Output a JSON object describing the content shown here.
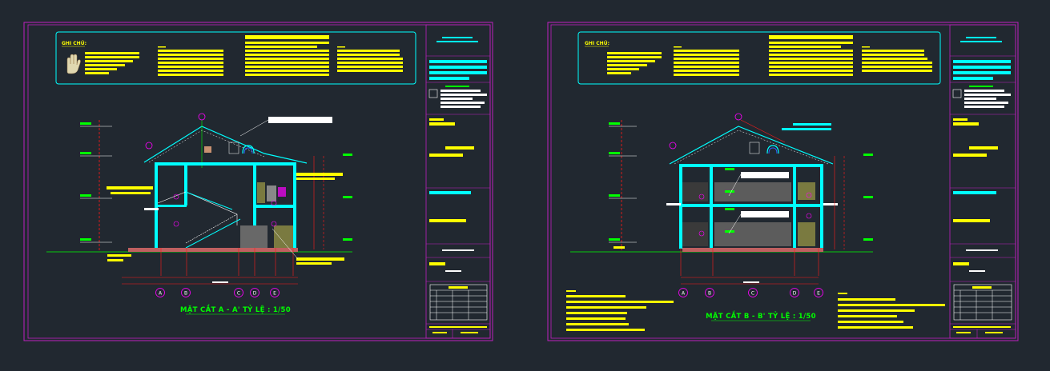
{
  "colors": {
    "background": "#212830",
    "sheet_frame": "#c01fc0",
    "cyan": "#00ffff",
    "yellow": "#ffff00",
    "green": "#00ff00",
    "red": "#ff1a1a",
    "white": "#ffffff",
    "magenta": "#ff00ff"
  },
  "sheets": [
    {
      "notes_title": "GHI CHÚ:",
      "section_title": "MẶT CẮT A - A'  TỶ LỆ : 1/50",
      "axes": [
        "A",
        "B",
        "C",
        "D",
        "E"
      ]
    },
    {
      "notes_title": "GHI CHÚ:",
      "section_title": "MẶT CẮT B - B'  TỶ LỆ : 1/50",
      "axes": [
        "A",
        "B",
        "C",
        "D",
        "E"
      ]
    }
  ],
  "icons": {
    "hand": "hand-icon"
  }
}
